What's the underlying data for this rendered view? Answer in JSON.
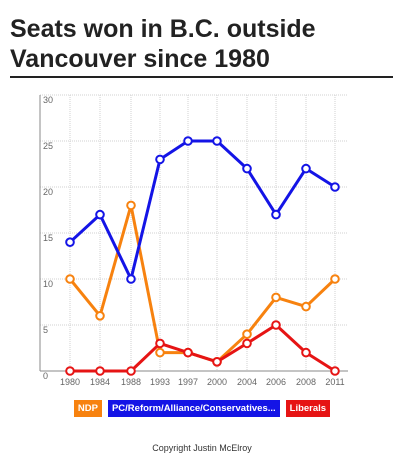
{
  "title": "Seats won in B.C. outside Vancouver since 1980",
  "credit": "Copyright Justin McElroy",
  "chart_data": {
    "type": "line",
    "title": "Seats won in B.C. outside Vancouver since 1980",
    "xlabel": "",
    "ylabel": "",
    "categories": [
      "1980",
      "1984",
      "1988",
      "1993",
      "1997",
      "2000",
      "2004",
      "2006",
      "2008",
      "2011"
    ],
    "ylim": [
      0,
      30
    ],
    "yticks": [
      "0",
      "5",
      "10",
      "15",
      "20",
      "25",
      "30"
    ],
    "grid": true,
    "legend": "bottom",
    "series": [
      {
        "name": "NDP",
        "color": "#f7820f",
        "values": [
          10,
          6,
          18,
          2,
          2,
          1,
          4,
          8,
          7,
          10
        ]
      },
      {
        "name": "PC/Reform/Alliance/Conservatives...",
        "color": "#1414e6",
        "values": [
          14,
          17,
          10,
          23,
          25,
          25,
          22,
          17,
          22,
          20
        ]
      },
      {
        "name": "Liberals",
        "color": "#e61414",
        "values": [
          0,
          0,
          0,
          3,
          2,
          1,
          3,
          5,
          2,
          0
        ]
      }
    ]
  }
}
